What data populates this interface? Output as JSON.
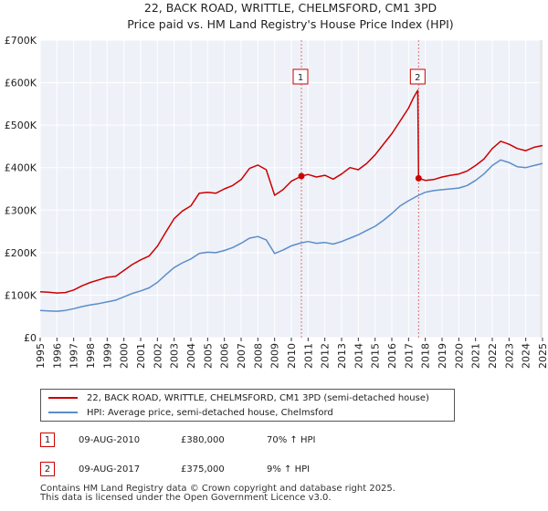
{
  "chart_data": {
    "type": "line",
    "title": "22, BACK ROAD, WRITTLE, CHELMSFORD, CM1 3PD",
    "subtitle": "Price paid vs. HM Land Registry's House Price Index (HPI)",
    "xlim": [
      1995,
      2025
    ],
    "ylim": [
      0,
      700000
    ],
    "x_ticks": [
      "1995",
      "1996",
      "1997",
      "1998",
      "1999",
      "2000",
      "2001",
      "2002",
      "2003",
      "2004",
      "2005",
      "2006",
      "2007",
      "2008",
      "2009",
      "2010",
      "2011",
      "2012",
      "2013",
      "2014",
      "2015",
      "2016",
      "2017",
      "2018",
      "2019",
      "2020",
      "2021",
      "2022",
      "2023",
      "2024",
      "2025"
    ],
    "y_ticks": [
      {
        "value": 0,
        "label": "£0"
      },
      {
        "value": 100000,
        "label": "£100K"
      },
      {
        "value": 200000,
        "label": "£200K"
      },
      {
        "value": 300000,
        "label": "£300K"
      },
      {
        "value": 400000,
        "label": "£400K"
      },
      {
        "value": 500000,
        "label": "£500K"
      },
      {
        "value": 600000,
        "label": "£600K"
      },
      {
        "value": 700000,
        "label": "£700K"
      }
    ],
    "series": [
      {
        "name": "22, BACK ROAD, WRITTLE, CHELMSFORD, CM1 3PD (semi-detached house)",
        "color": "#cc0000",
        "points": [
          [
            1995.0,
            108000
          ],
          [
            1995.5,
            107000
          ],
          [
            1996.0,
            105000
          ],
          [
            1996.5,
            106000
          ],
          [
            1997.0,
            112000
          ],
          [
            1997.5,
            122000
          ],
          [
            1998.0,
            130000
          ],
          [
            1998.5,
            136000
          ],
          [
            1999.0,
            142000
          ],
          [
            1999.5,
            144000
          ],
          [
            2000.0,
            158000
          ],
          [
            2000.5,
            172000
          ],
          [
            2001.0,
            183000
          ],
          [
            2001.5,
            192000
          ],
          [
            2002.0,
            215000
          ],
          [
            2002.5,
            248000
          ],
          [
            2003.0,
            280000
          ],
          [
            2003.5,
            298000
          ],
          [
            2004.0,
            310000
          ],
          [
            2004.5,
            340000
          ],
          [
            2005.0,
            342000
          ],
          [
            2005.5,
            340000
          ],
          [
            2006.0,
            350000
          ],
          [
            2006.5,
            358000
          ],
          [
            2007.0,
            372000
          ],
          [
            2007.5,
            398000
          ],
          [
            2008.0,
            406000
          ],
          [
            2008.5,
            395000
          ],
          [
            2009.0,
            335000
          ],
          [
            2009.5,
            348000
          ],
          [
            2010.0,
            368000
          ],
          [
            2010.6,
            380000
          ],
          [
            2011.0,
            384000
          ],
          [
            2011.5,
            378000
          ],
          [
            2012.0,
            382000
          ],
          [
            2012.5,
            373000
          ],
          [
            2013.0,
            385000
          ],
          [
            2013.5,
            400000
          ],
          [
            2014.0,
            395000
          ],
          [
            2014.5,
            410000
          ],
          [
            2015.0,
            430000
          ],
          [
            2015.5,
            455000
          ],
          [
            2016.0,
            480000
          ],
          [
            2016.5,
            510000
          ],
          [
            2017.0,
            540000
          ],
          [
            2017.3,
            565000
          ],
          [
            2017.55,
            582000
          ],
          [
            2017.6,
            375000
          ],
          [
            2018.0,
            370000
          ],
          [
            2018.5,
            372000
          ],
          [
            2019.0,
            378000
          ],
          [
            2019.5,
            382000
          ],
          [
            2020.0,
            385000
          ],
          [
            2020.5,
            392000
          ],
          [
            2021.0,
            405000
          ],
          [
            2021.5,
            420000
          ],
          [
            2022.0,
            445000
          ],
          [
            2022.5,
            462000
          ],
          [
            2023.0,
            455000
          ],
          [
            2023.5,
            445000
          ],
          [
            2024.0,
            440000
          ],
          [
            2024.5,
            448000
          ],
          [
            2025.0,
            452000
          ]
        ]
      },
      {
        "name": "HPI: Average price, semi-detached house, Chelmsford",
        "color": "#5b8dc9",
        "points": [
          [
            1995.0,
            64000
          ],
          [
            1995.5,
            63000
          ],
          [
            1996.0,
            62000
          ],
          [
            1996.5,
            64000
          ],
          [
            1997.0,
            68000
          ],
          [
            1997.5,
            73000
          ],
          [
            1998.0,
            77000
          ],
          [
            1998.5,
            80000
          ],
          [
            1999.0,
            84000
          ],
          [
            1999.5,
            88000
          ],
          [
            2000.0,
            96000
          ],
          [
            2000.5,
            104000
          ],
          [
            2001.0,
            110000
          ],
          [
            2001.5,
            117000
          ],
          [
            2002.0,
            130000
          ],
          [
            2002.5,
            148000
          ],
          [
            2003.0,
            165000
          ],
          [
            2003.5,
            176000
          ],
          [
            2004.0,
            185000
          ],
          [
            2004.5,
            198000
          ],
          [
            2005.0,
            201000
          ],
          [
            2005.5,
            200000
          ],
          [
            2006.0,
            205000
          ],
          [
            2006.5,
            212000
          ],
          [
            2007.0,
            222000
          ],
          [
            2007.5,
            234000
          ],
          [
            2008.0,
            238000
          ],
          [
            2008.5,
            230000
          ],
          [
            2009.0,
            198000
          ],
          [
            2009.5,
            206000
          ],
          [
            2010.0,
            216000
          ],
          [
            2010.6,
            223000
          ],
          [
            2011.0,
            226000
          ],
          [
            2011.5,
            222000
          ],
          [
            2012.0,
            224000
          ],
          [
            2012.5,
            220000
          ],
          [
            2013.0,
            226000
          ],
          [
            2013.5,
            234000
          ],
          [
            2014.0,
            242000
          ],
          [
            2014.5,
            252000
          ],
          [
            2015.0,
            262000
          ],
          [
            2015.5,
            276000
          ],
          [
            2016.0,
            292000
          ],
          [
            2016.5,
            310000
          ],
          [
            2017.0,
            322000
          ],
          [
            2017.6,
            335000
          ],
          [
            2018.0,
            342000
          ],
          [
            2018.5,
            346000
          ],
          [
            2019.0,
            348000
          ],
          [
            2019.5,
            350000
          ],
          [
            2020.0,
            352000
          ],
          [
            2020.5,
            358000
          ],
          [
            2021.0,
            370000
          ],
          [
            2021.5,
            385000
          ],
          [
            2022.0,
            405000
          ],
          [
            2022.5,
            418000
          ],
          [
            2023.0,
            412000
          ],
          [
            2023.5,
            402000
          ],
          [
            2024.0,
            400000
          ],
          [
            2024.5,
            405000
          ],
          [
            2025.0,
            410000
          ]
        ]
      }
    ],
    "transactions": [
      {
        "label": "1",
        "x": 2010.6,
        "value": 380000,
        "date": "09-AUG-2010",
        "price": "£380,000",
        "hpi": "70% ↑ HPI"
      },
      {
        "label": "2",
        "x": 2017.6,
        "value": 375000,
        "date": "09-AUG-2017",
        "price": "£375,000",
        "hpi": "9% ↑ HPI"
      }
    ],
    "legend_position": "bottom"
  },
  "footer": {
    "line1": "Contains HM Land Registry data © Crown copyright and database right 2025.",
    "line2": "This data is licensed under the Open Government Licence v3.0."
  }
}
